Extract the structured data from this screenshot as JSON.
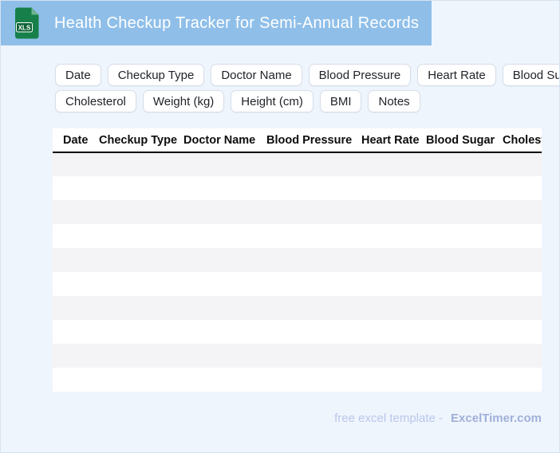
{
  "header": {
    "title": "Health Checkup Tracker for Semi-Annual Records",
    "file_icon_label": "XLS"
  },
  "field_chips": {
    "row1": [
      "Date",
      "Checkup Type",
      "Doctor Name",
      "Blood Pressure",
      "Heart Rate",
      "Blood Sugar"
    ],
    "row2": [
      "Cholesterol",
      "Weight (kg)",
      "Height (cm)",
      "BMI",
      "Notes"
    ]
  },
  "table": {
    "columns": [
      "Date",
      "Checkup Type",
      "Doctor Name",
      "Blood Pressure",
      "Heart Rate",
      "Blood Sugar",
      "Cholesterol"
    ],
    "row_count": 10
  },
  "footer": {
    "credit_text": "free excel template -",
    "site_name": "ExcelTimer.com"
  },
  "colors": {
    "banner_blue": "#8fbfe9",
    "page_background": "#eff5fd",
    "row_stripe_gray": "#f4f4f6",
    "icon_green": "#17804a",
    "header_border_black": "#000000"
  }
}
